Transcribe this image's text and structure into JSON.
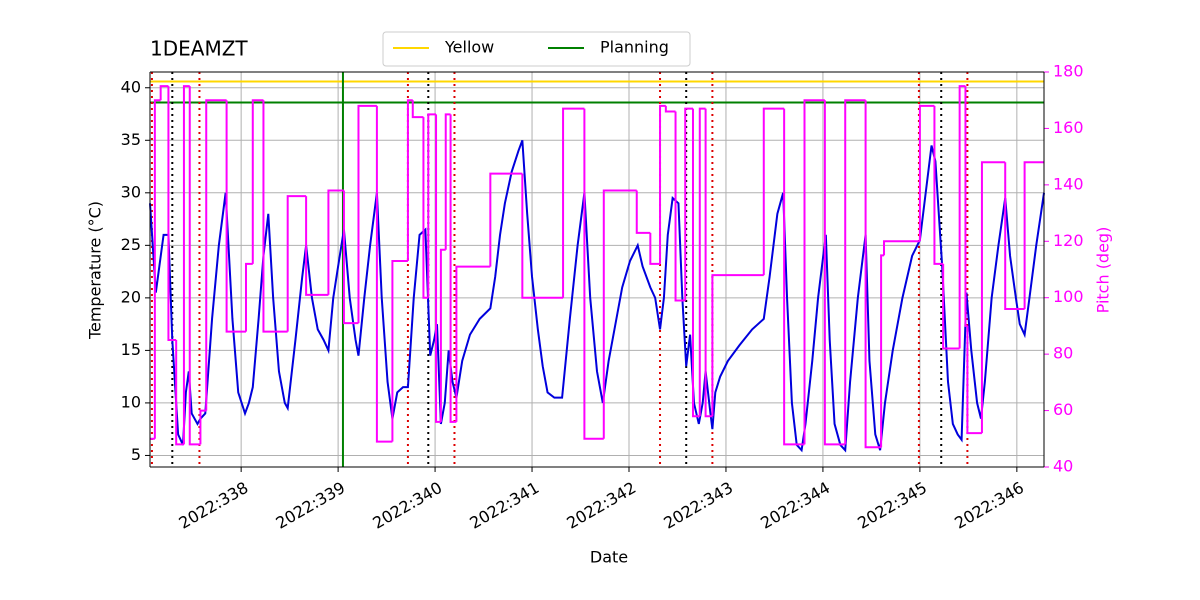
{
  "chart_data": {
    "type": "line",
    "title": "1DEAMZT",
    "xlabel": "Date",
    "ylabel": "Temperature (°C)",
    "y2label": "Pitch (deg)",
    "y2color": "#ff00ff",
    "grid": true,
    "legend": "top",
    "xlim": [
      337.06,
      346.28
    ],
    "xticks": [
      {
        "value": 338,
        "label": "2022:338"
      },
      {
        "value": 339,
        "label": "2022:339"
      },
      {
        "value": 340,
        "label": "2022:340"
      },
      {
        "value": 341,
        "label": "2022:341"
      },
      {
        "value": 342,
        "label": "2022:342"
      },
      {
        "value": 343,
        "label": "2022:343"
      },
      {
        "value": 344,
        "label": "2022:344"
      },
      {
        "value": 345,
        "label": "2022:345"
      },
      {
        "value": 346,
        "label": "2022:346"
      }
    ],
    "ylim": [
      3.9,
      41.5
    ],
    "yticks": [
      5,
      10,
      15,
      20,
      25,
      30,
      35,
      40
    ],
    "y2lim": [
      40,
      180
    ],
    "y2ticks": [
      40,
      60,
      80,
      100,
      120,
      140,
      160,
      180
    ],
    "hlines": [
      {
        "name": "Yellow",
        "color": "#ffd700",
        "y": 40.6
      },
      {
        "name": "Planning",
        "color": "#008000",
        "y": 38.6
      }
    ],
    "vlines": [
      {
        "color": "#008000",
        "dashed": false,
        "x": [
          339.05
        ]
      },
      {
        "color": "#000000",
        "dashed": true,
        "x": [
          337.29,
          339.93,
          342.59,
          345.22
        ]
      },
      {
        "color": "#dd0000",
        "dashed": true,
        "x": [
          337.08,
          337.57,
          339.72,
          340.2,
          342.32,
          342.86,
          344.99,
          345.49
        ]
      }
    ],
    "series": [
      {
        "color": "#0000dd",
        "axis": "y",
        "steps": false,
        "x": [
          337.06,
          337.12,
          337.2,
          337.25,
          337.29,
          337.35,
          337.4,
          337.43,
          337.46,
          337.49,
          337.55,
          337.58,
          337.63,
          337.7,
          337.77,
          337.84,
          337.91,
          337.97,
          338.04,
          338.08,
          338.12,
          338.18,
          338.23,
          338.28,
          338.33,
          338.39,
          338.45,
          338.48,
          338.56,
          338.63,
          338.67,
          338.73,
          338.79,
          338.85,
          338.9,
          338.95,
          339,
          339.06,
          339.12,
          339.18,
          339.21,
          339.27,
          339.33,
          339.4,
          339.45,
          339.51,
          339.56,
          339.61,
          339.67,
          339.72,
          339.78,
          339.84,
          339.9,
          339.95,
          339.99,
          340.02,
          340.06,
          340.1,
          340.14,
          340.18,
          340.22,
          340.28,
          340.36,
          340.46,
          340.57,
          340.62,
          340.67,
          340.72,
          340.79,
          340.86,
          340.9,
          340.95,
          341,
          341.06,
          341.11,
          341.16,
          341.23,
          341.31,
          341.39,
          341.47,
          341.54,
          341.6,
          341.67,
          341.73,
          341.79,
          341.87,
          341.93,
          342.01,
          342.09,
          342.14,
          342.22,
          342.27,
          342.32,
          342.36,
          342.4,
          342.45,
          342.51,
          342.55,
          342.59,
          342.63,
          342.67,
          342.72,
          342.76,
          342.79,
          342.84,
          342.86,
          342.89,
          342.94,
          343.02,
          343.14,
          343.27,
          343.39,
          343.45,
          343.53,
          343.59,
          343.63,
          343.68,
          343.73,
          343.78,
          343.82,
          343.89,
          343.95,
          344.03,
          344.07,
          344.12,
          344.18,
          344.23,
          344.28,
          344.36,
          344.44,
          344.48,
          344.54,
          344.59,
          344.64,
          344.72,
          344.82,
          344.92,
          345,
          345.06,
          345.12,
          345.16,
          345.23,
          345.29,
          345.34,
          345.39,
          345.43,
          345.48,
          345.53,
          345.59,
          345.63,
          345.67,
          345.74,
          345.81,
          345.88,
          345.93,
          345.99,
          346.03,
          346.08,
          346.13,
          346.2,
          346.28
        ],
        "values": [
          29,
          20.5,
          26,
          26,
          16,
          7,
          6,
          11,
          13,
          9,
          8,
          8.5,
          9,
          18,
          25,
          30,
          18,
          11,
          9,
          10,
          11.5,
          18,
          24,
          28,
          20,
          13,
          10,
          9.5,
          16,
          22,
          25,
          20,
          17,
          16,
          15,
          20,
          23,
          26.5,
          20,
          16,
          14.5,
          20,
          25,
          30,
          20,
          12,
          8.5,
          11,
          11.5,
          11.5,
          20,
          26,
          26.5,
          14.5,
          16,
          17.5,
          8,
          10,
          15,
          12,
          10.5,
          14,
          16.5,
          18,
          19,
          22,
          26,
          29,
          32,
          34,
          35,
          28,
          22,
          17,
          13.5,
          11,
          10.5,
          10.5,
          18,
          25,
          30,
          20,
          13,
          10,
          14,
          18,
          21,
          23.5,
          25,
          23,
          21,
          20,
          17,
          20,
          26,
          29.5,
          29,
          20,
          13.5,
          16.5,
          10,
          8,
          10,
          13,
          9,
          7.5,
          11,
          12.5,
          14,
          15.5,
          17,
          18,
          22,
          28,
          30,
          20,
          10,
          6,
          5.5,
          8,
          14,
          20,
          26,
          16,
          8,
          6,
          5.5,
          12,
          20,
          26,
          14,
          7,
          5.5,
          10,
          15,
          20,
          24,
          25.5,
          30,
          34.5,
          33,
          23,
          12,
          8,
          7,
          6.5,
          20.5,
          15,
          10,
          8.5,
          12,
          20,
          25,
          29.5,
          24,
          20,
          17.5,
          16.5,
          20,
          25,
          30
        ]
      },
      {
        "color": "#ff00ff",
        "axis": "y2",
        "steps": true,
        "x": [
          337.06,
          337.11,
          337.17,
          337.25,
          337.33,
          337.41,
          337.47,
          337.58,
          337.64,
          337.85,
          338.05,
          338.12,
          338.23,
          338.48,
          338.67,
          338.9,
          339.06,
          339.21,
          339.4,
          339.56,
          339.72,
          339.77,
          339.88,
          339.93,
          340.01,
          340.06,
          340.11,
          340.16,
          340.22,
          340.57,
          340.9,
          341.32,
          341.54,
          341.74,
          342.08,
          342.22,
          342.32,
          342.38,
          342.48,
          342.58,
          342.66,
          342.73,
          342.79,
          342.86,
          343.39,
          343.6,
          343.81,
          344.02,
          344.23,
          344.44,
          344.6,
          344.63,
          345,
          345.15,
          345.24,
          345.41,
          345.47,
          345.49,
          345.64,
          345.88,
          346.08,
          346.28
        ],
        "values": [
          50,
          170,
          175,
          85,
          48,
          175,
          48,
          60,
          170,
          88,
          112,
          170,
          88,
          136,
          101,
          138,
          91,
          168,
          49,
          113,
          170,
          164,
          100,
          165,
          56,
          117,
          165,
          56,
          111,
          144,
          100,
          167,
          50,
          138,
          123,
          112,
          168,
          166,
          99,
          167,
          58,
          167,
          58,
          108,
          167,
          48,
          170,
          48,
          170,
          47,
          115,
          120,
          168,
          112,
          82,
          175,
          90,
          52,
          148,
          96,
          148,
          148
        ]
      }
    ]
  }
}
